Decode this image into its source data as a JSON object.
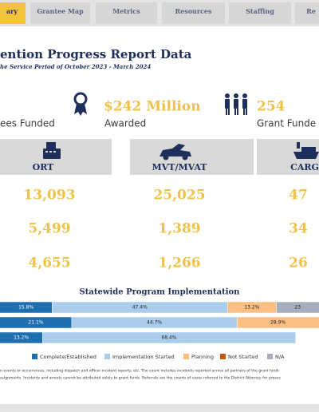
{
  "nav": {
    "tabs": [
      "ary",
      "Grantee Map",
      "Metrics",
      "Resources",
      "Staffing",
      "Re"
    ]
  },
  "header": {
    "title": "ention Progress Report Data",
    "subtitle": "he Service Period of October 2023 - March 2024"
  },
  "stats": {
    "funded_label": "ees Funded",
    "awarded_value": "$242 Million",
    "awarded_label": "Awarded",
    "grant_value": "254",
    "grant_label": "Grant Funde"
  },
  "metrics": {
    "columns": [
      {
        "header": "ORT",
        "values": [
          "13,093",
          "5,499",
          "4,655"
        ]
      },
      {
        "header": "MVT/MVAT",
        "values": [
          "25,025",
          "1,389",
          "1,266"
        ]
      },
      {
        "header": "CARG",
        "values": [
          "47",
          "34",
          "26"
        ]
      }
    ]
  },
  "chart_data": {
    "type": "stacked-bar",
    "title": "Statewide Program Implementation",
    "categories": [
      null,
      null,
      null
    ],
    "series": [
      {
        "name": "Complete/Established",
        "color": "#1f6fb0",
        "values": [
          15.8,
          21.1,
          13.2
        ],
        "value_labels": [
          "15.8%",
          "21.1%",
          "13.2%"
        ]
      },
      {
        "name": "Implementation Started",
        "color": "#a9cdea",
        "values": [
          47.4,
          44.7,
          68.4
        ],
        "value_labels": [
          "47.4%",
          "44.7%",
          "68.4%"
        ]
      },
      {
        "name": "Planning",
        "color": "#fbbf84",
        "values": [
          13.2,
          28.9,
          null
        ],
        "value_labels": [
          "13.2%",
          "28.9%",
          null
        ]
      },
      {
        "name": "Not Started",
        "color": "#c55a11",
        "values": [
          null,
          null,
          null
        ],
        "value_labels": [
          null,
          null,
          null
        ]
      },
      {
        "name": "N/A",
        "color": "#a6afbb",
        "values": [
          23,
          null,
          null
        ],
        "value_labels": [
          "23",
          null,
          null
        ]
      }
    ]
  },
  "footnote": [
    "n events or occurrences, including dispatch and officer incident reports, etc. The count includes incidents reported across all partners of the grant fundi",
    "ssignments. Incidents and arrests cannot be attributed solely to grant funds. Referrals are the counts of cases referred to the District Attorney for prosec"
  ]
}
